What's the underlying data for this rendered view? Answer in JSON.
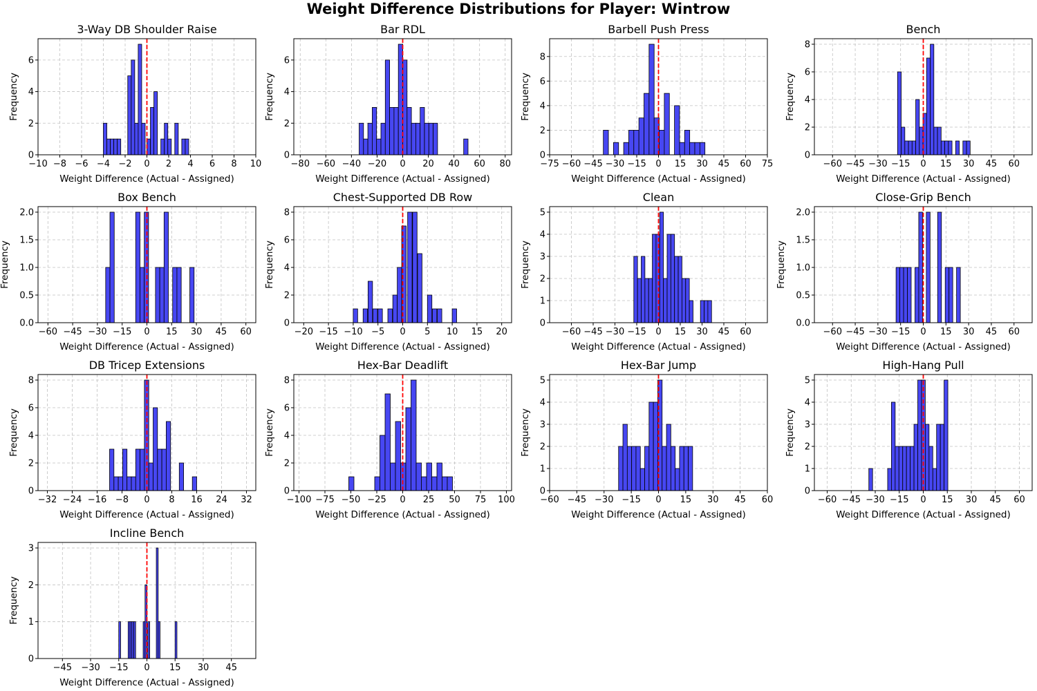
{
  "figure": {
    "title": "Weight Difference Distributions for Player: Wintrow"
  },
  "style": {
    "bar_fill": "#4747f2",
    "bar_edge": "#000000",
    "zero_line": "#ff0000",
    "grid": "#c0c0c0"
  },
  "chart_data": [
    {
      "type": "bar",
      "title": "3-Way DB Shoulder Raise",
      "xlabel": "Weight Difference (Actual - Assigned)",
      "ylabel": "Frequency",
      "xlim": [
        -10,
        10
      ],
      "ylim": [
        0,
        7.35
      ],
      "xticks": [
        -10,
        -8,
        -6,
        -4,
        -2,
        0,
        2,
        4,
        6,
        8,
        10
      ],
      "yticks": [
        0,
        2,
        4,
        6
      ],
      "grid": true,
      "reference_line_x": 0,
      "bar_width": 0.32,
      "bars": [
        [
          -4,
          2
        ],
        [
          -3.68,
          1
        ],
        [
          -3.36,
          1
        ],
        [
          -3.04,
          1
        ],
        [
          -2.72,
          1
        ],
        [
          -1.76,
          5
        ],
        [
          -1.44,
          6
        ],
        [
          -1.12,
          2
        ],
        [
          -0.8,
          7
        ],
        [
          -0.48,
          2
        ],
        [
          0,
          1
        ],
        [
          0.32,
          3
        ],
        [
          0.64,
          4
        ],
        [
          1.28,
          1
        ],
        [
          1.6,
          2
        ],
        [
          1.92,
          1
        ],
        [
          2.56,
          2
        ],
        [
          3.2,
          1
        ],
        [
          3.52,
          1
        ]
      ]
    },
    {
      "type": "bar",
      "title": "Bar RDL",
      "xlabel": "Weight Difference (Actual - Assigned)",
      "ylabel": "Frequency",
      "xlim": [
        -85,
        85
      ],
      "ylim": [
        0,
        7.35
      ],
      "xticks": [
        -80,
        -60,
        -40,
        -20,
        0,
        20,
        40,
        60,
        80
      ],
      "yticks": [
        0,
        2,
        4,
        6
      ],
      "grid": true,
      "reference_line_x": 0,
      "bar_width": 3.4,
      "bars": [
        [
          -34,
          2
        ],
        [
          -30.6,
          1
        ],
        [
          -27.2,
          2
        ],
        [
          -23.8,
          3
        ],
        [
          -20.4,
          1
        ],
        [
          -17,
          2
        ],
        [
          -13.6,
          6
        ],
        [
          -10.2,
          3
        ],
        [
          -6.8,
          3
        ],
        [
          -3.4,
          7
        ],
        [
          0,
          6
        ],
        [
          3.4,
          3
        ],
        [
          6.8,
          2
        ],
        [
          10.2,
          2
        ],
        [
          13.6,
          3
        ],
        [
          17,
          2
        ],
        [
          20.4,
          2
        ],
        [
          23.8,
          2
        ],
        [
          47.6,
          1
        ]
      ]
    },
    {
      "type": "bar",
      "title": "Barbell Push Press",
      "xlabel": "Weight Difference (Actual - Assigned)",
      "ylabel": "Frequency",
      "xlim": [
        -75,
        75
      ],
      "ylim": [
        0,
        9.45
      ],
      "xticks": [
        -75,
        -60,
        -45,
        -30,
        -15,
        0,
        15,
        30,
        45,
        60,
        75
      ],
      "yticks": [
        0,
        2,
        4,
        6,
        8
      ],
      "grid": true,
      "reference_line_x": 0,
      "bar_width": 3.5,
      "bars": [
        [
          -38,
          2
        ],
        [
          -31,
          1
        ],
        [
          -24,
          1
        ],
        [
          -20.5,
          2
        ],
        [
          -17,
          2
        ],
        [
          -13.5,
          3
        ],
        [
          -10,
          5
        ],
        [
          -6.5,
          9
        ],
        [
          -3,
          3
        ],
        [
          0.5,
          2
        ],
        [
          4,
          5
        ],
        [
          11,
          4
        ],
        [
          14.5,
          1
        ],
        [
          18,
          2
        ],
        [
          21.5,
          1
        ],
        [
          25,
          1
        ],
        [
          28.5,
          1
        ]
      ]
    },
    {
      "type": "bar",
      "title": "Bench",
      "xlabel": "Weight Difference (Actual - Assigned)",
      "ylabel": "Frequency",
      "xlim": [
        -72,
        72
      ],
      "ylim": [
        0,
        8.4
      ],
      "xticks": [
        -60,
        -45,
        -30,
        -15,
        0,
        15,
        30,
        45,
        60
      ],
      "yticks": [
        0,
        2,
        4,
        6,
        8
      ],
      "grid": true,
      "reference_line_x": 0,
      "bar_width": 2.4,
      "bars": [
        [
          -17,
          6
        ],
        [
          -14.6,
          2
        ],
        [
          -12.2,
          1
        ],
        [
          -9.8,
          1
        ],
        [
          -7.4,
          1
        ],
        [
          -5,
          4
        ],
        [
          -2.6,
          2
        ],
        [
          -0.2,
          3
        ],
        [
          2.2,
          7
        ],
        [
          4.6,
          8
        ],
        [
          7,
          2
        ],
        [
          9.4,
          2
        ],
        [
          11.8,
          1
        ],
        [
          14.2,
          1
        ],
        [
          16.6,
          1
        ],
        [
          21.4,
          1
        ],
        [
          26.2,
          1
        ],
        [
          28.6,
          1
        ]
      ]
    },
    {
      "type": "bar",
      "title": "Box Bench",
      "xlabel": "Weight Difference (Actual - Assigned)",
      "ylabel": "Frequency",
      "xlim": [
        -66,
        66
      ],
      "ylim": [
        0,
        2.1
      ],
      "xticks": [
        -60,
        -45,
        -30,
        -15,
        0,
        15,
        30,
        45,
        60
      ],
      "yticks": [
        0,
        0.5,
        1.0,
        1.5,
        2.0
      ],
      "ytick_labels": [
        "0.0",
        "0.5",
        "1.0",
        "1.5",
        "2.0"
      ],
      "grid": true,
      "reference_line_x": 0,
      "bar_width": 2.6,
      "bars": [
        [
          -25,
          1
        ],
        [
          -22.4,
          2
        ],
        [
          -6.8,
          2
        ],
        [
          -4.2,
          1
        ],
        [
          -1.6,
          2
        ],
        [
          5.2,
          1
        ],
        [
          7.8,
          1
        ],
        [
          10.4,
          2
        ],
        [
          15.6,
          1
        ],
        [
          18.2,
          1
        ],
        [
          26,
          1
        ]
      ]
    },
    {
      "type": "bar",
      "title": "Chest-Supported DB Row",
      "xlabel": "Weight Difference (Actual - Assigned)",
      "ylabel": "Frequency",
      "xlim": [
        -22,
        22
      ],
      "ylim": [
        0,
        8.4
      ],
      "xticks": [
        -20,
        -15,
        -10,
        -5,
        0,
        5,
        10,
        15,
        20
      ],
      "yticks": [
        0,
        2,
        4,
        6,
        8
      ],
      "grid": true,
      "reference_line_x": 0,
      "bar_width": 0.9,
      "bars": [
        [
          -10,
          1
        ],
        [
          -8,
          1
        ],
        [
          -7,
          3
        ],
        [
          -6,
          1
        ],
        [
          -5,
          1
        ],
        [
          -3,
          1
        ],
        [
          -2,
          2
        ],
        [
          -1.1,
          4
        ],
        [
          -0.2,
          7
        ],
        [
          1,
          8
        ],
        [
          2,
          8
        ],
        [
          3,
          5
        ],
        [
          5,
          2
        ],
        [
          6,
          1
        ],
        [
          7,
          1
        ],
        [
          10,
          1
        ]
      ]
    },
    {
      "type": "bar",
      "title": "Clean",
      "xlabel": "Weight Difference (Actual - Assigned)",
      "ylabel": "Frequency",
      "xlim": [
        -75,
        75
      ],
      "ylim": [
        0,
        5.25
      ],
      "xticks": [
        -60,
        -45,
        -30,
        -15,
        0,
        15,
        30,
        45,
        60
      ],
      "yticks": [
        0,
        1,
        2,
        3,
        4,
        5
      ],
      "grid": true,
      "reference_line_x": 0,
      "bar_width": 2.55,
      "bars": [
        [
          -17,
          3
        ],
        [
          -14.45,
          2
        ],
        [
          -11.9,
          3
        ],
        [
          -9.35,
          2
        ],
        [
          -6.8,
          2
        ],
        [
          -4.25,
          4
        ],
        [
          -1.7,
          4
        ],
        [
          0.85,
          5
        ],
        [
          3.4,
          2
        ],
        [
          5.95,
          4
        ],
        [
          8.5,
          4
        ],
        [
          11.05,
          3
        ],
        [
          13.6,
          3
        ],
        [
          16.15,
          2
        ],
        [
          18.7,
          2
        ],
        [
          21.25,
          1
        ],
        [
          28.9,
          1
        ],
        [
          31.45,
          1
        ],
        [
          34,
          1
        ]
      ]
    },
    {
      "type": "bar",
      "title": "Close-Grip Bench",
      "xlabel": "Weight Difference (Actual - Assigned)",
      "ylabel": "Frequency",
      "xlim": [
        -72,
        72
      ],
      "ylim": [
        0,
        2.1
      ],
      "xticks": [
        -60,
        -45,
        -30,
        -15,
        0,
        15,
        30,
        45,
        60
      ],
      "yticks": [
        0,
        0.5,
        1.0,
        1.5,
        2.0
      ],
      "ytick_labels": [
        "0.0",
        "0.5",
        "1.0",
        "1.5",
        "2.0"
      ],
      "grid": true,
      "reference_line_x": 0,
      "bar_width": 2.5,
      "bars": [
        [
          -18,
          1
        ],
        [
          -15.5,
          1
        ],
        [
          -13,
          1
        ],
        [
          -10.5,
          1
        ],
        [
          -5.5,
          1
        ],
        [
          -3,
          2
        ],
        [
          2,
          2
        ],
        [
          9.5,
          2
        ],
        [
          14.5,
          1
        ],
        [
          17,
          1
        ],
        [
          22,
          1
        ]
      ]
    },
    {
      "type": "bar",
      "title": "DB Tricep Extensions",
      "xlabel": "Weight Difference (Actual - Assigned)",
      "ylabel": "Frequency",
      "xlim": [
        -35,
        35
      ],
      "ylim": [
        0,
        8.4
      ],
      "xticks": [
        -32,
        -24,
        -16,
        -8,
        0,
        8,
        16,
        24,
        32
      ],
      "yticks": [
        0,
        2,
        4,
        6,
        8
      ],
      "grid": true,
      "reference_line_x": 0,
      "bar_width": 1.4,
      "bars": [
        [
          -12,
          3
        ],
        [
          -10.6,
          1
        ],
        [
          -9.2,
          1
        ],
        [
          -7.8,
          3
        ],
        [
          -6.4,
          1
        ],
        [
          -5,
          1
        ],
        [
          -3.6,
          3
        ],
        [
          -2.2,
          3
        ],
        [
          -0.8,
          8
        ],
        [
          0.6,
          2
        ],
        [
          2,
          6
        ],
        [
          3.4,
          3
        ],
        [
          4.8,
          3
        ],
        [
          6.2,
          5
        ],
        [
          10.4,
          2
        ],
        [
          14.6,
          1
        ]
      ]
    },
    {
      "type": "bar",
      "title": "Hex-Bar Deadlift",
      "xlabel": "Weight Difference (Actual - Assigned)",
      "ylabel": "Frequency",
      "xlim": [
        -105,
        105
      ],
      "ylim": [
        0,
        8.4
      ],
      "xticks": [
        -100,
        -75,
        -50,
        -25,
        0,
        25,
        50,
        75,
        100
      ],
      "yticks": [
        0,
        2,
        4,
        6,
        8
      ],
      "grid": true,
      "reference_line_x": 0,
      "bar_width": 5,
      "bars": [
        [
          -52,
          1
        ],
        [
          -27,
          1
        ],
        [
          -22,
          4
        ],
        [
          -17,
          7
        ],
        [
          -12,
          2
        ],
        [
          -7,
          5
        ],
        [
          -2,
          2
        ],
        [
          3,
          6
        ],
        [
          8,
          8
        ],
        [
          13,
          2
        ],
        [
          18,
          1
        ],
        [
          23,
          2
        ],
        [
          28,
          1
        ],
        [
          33,
          2
        ],
        [
          38,
          1
        ],
        [
          43,
          1
        ]
      ]
    },
    {
      "type": "bar",
      "title": "Hex-Bar Jump",
      "xlabel": "Weight Difference (Actual - Assigned)",
      "ylabel": "Frequency",
      "xlim": [
        -60,
        60
      ],
      "ylim": [
        0,
        5.25
      ],
      "xticks": [
        -60,
        -45,
        -30,
        -15,
        0,
        15,
        30,
        45,
        60
      ],
      "yticks": [
        0,
        1,
        2,
        3,
        4,
        5
      ],
      "grid": true,
      "reference_line_x": 0,
      "bar_width": 2.4,
      "bars": [
        [
          -22,
          2
        ],
        [
          -19.6,
          3
        ],
        [
          -17.2,
          2
        ],
        [
          -14.8,
          2
        ],
        [
          -12.4,
          2
        ],
        [
          -10,
          1
        ],
        [
          -7.6,
          2
        ],
        [
          -5.2,
          4
        ],
        [
          -2.8,
          4
        ],
        [
          -0.4,
          5
        ],
        [
          2,
          2
        ],
        [
          4.4,
          3
        ],
        [
          6.8,
          2
        ],
        [
          9.2,
          1
        ],
        [
          11.6,
          2
        ],
        [
          14,
          2
        ],
        [
          16.4,
          2
        ]
      ]
    },
    {
      "type": "bar",
      "title": "High-Hang Pull",
      "xlabel": "Weight Difference (Actual - Assigned)",
      "ylabel": "Frequency",
      "xlim": [
        -68,
        68
      ],
      "ylim": [
        0,
        5.25
      ],
      "xticks": [
        -60,
        -45,
        -30,
        -15,
        0,
        15,
        30,
        45,
        60
      ],
      "yticks": [
        0,
        1,
        2,
        3,
        4,
        5
      ],
      "grid": true,
      "reference_line_x": 0,
      "bar_width": 2.35,
      "bars": [
        [
          -34,
          1
        ],
        [
          -22.25,
          1
        ],
        [
          -19.9,
          4
        ],
        [
          -17.55,
          2
        ],
        [
          -15.2,
          2
        ],
        [
          -12.85,
          2
        ],
        [
          -10.5,
          2
        ],
        [
          -8.15,
          2
        ],
        [
          -5.8,
          3
        ],
        [
          -3.45,
          5
        ],
        [
          -1.1,
          5
        ],
        [
          1.25,
          3
        ],
        [
          3.6,
          2
        ],
        [
          5.95,
          1
        ],
        [
          8.3,
          3
        ],
        [
          10.65,
          3
        ],
        [
          13,
          5
        ]
      ]
    },
    {
      "type": "bar",
      "title": "Incline Bench",
      "xlabel": "Weight Difference (Actual - Assigned)",
      "ylabel": "Frequency",
      "xlim": [
        -58,
        58
      ],
      "ylim": [
        0,
        3.15
      ],
      "xticks": [
        -45,
        -30,
        -15,
        0,
        15,
        30,
        45
      ],
      "yticks": [
        0,
        1,
        2,
        3
      ],
      "grid": true,
      "reference_line_x": 0,
      "bar_width": 1,
      "bars": [
        [
          -15,
          1
        ],
        [
          -10,
          1
        ],
        [
          -9,
          1
        ],
        [
          -8,
          1
        ],
        [
          -7,
          1
        ],
        [
          -2,
          1
        ],
        [
          -1,
          2
        ],
        [
          0.5,
          1
        ],
        [
          5,
          3
        ],
        [
          6,
          1
        ],
        [
          15,
          1
        ]
      ]
    }
  ]
}
